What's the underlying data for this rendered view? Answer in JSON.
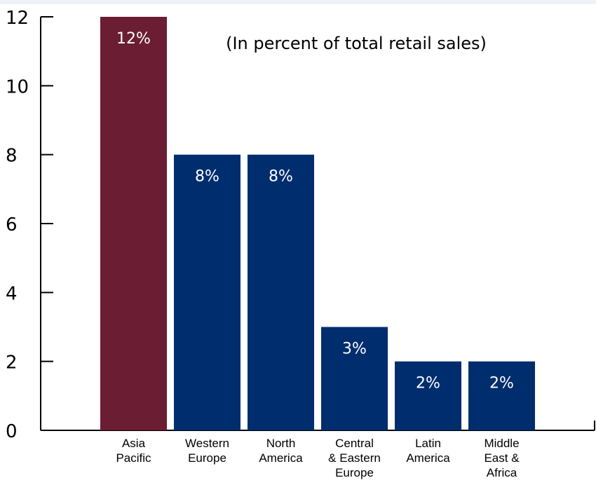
{
  "chart_data": {
    "type": "bar",
    "title": "",
    "subtitle": "(In percent of total retail sales)",
    "xlabel": "",
    "ylabel": "",
    "ylim": [
      0,
      12
    ],
    "yticks": [
      "0",
      "2",
      "4",
      "6",
      "8",
      "10",
      "12"
    ],
    "grid": false,
    "categories": [
      [
        "Asia",
        "Pacific"
      ],
      [
        "Western",
        "Europe"
      ],
      [
        "North",
        "America"
      ],
      [
        "Central",
        "& Eastern",
        "Europe"
      ],
      [
        "Latin",
        "America"
      ],
      [
        "Middle",
        "East &",
        "Africa"
      ]
    ],
    "values": [
      12,
      8,
      8,
      3,
      2,
      2
    ],
    "data_labels": [
      "12%",
      "8%",
      "8%",
      "3%",
      "2%",
      "2%"
    ],
    "colors": [
      "#6b1d33",
      "#002d6e",
      "#002d6e",
      "#002d6e",
      "#002d6e",
      "#002d6e"
    ]
  }
}
